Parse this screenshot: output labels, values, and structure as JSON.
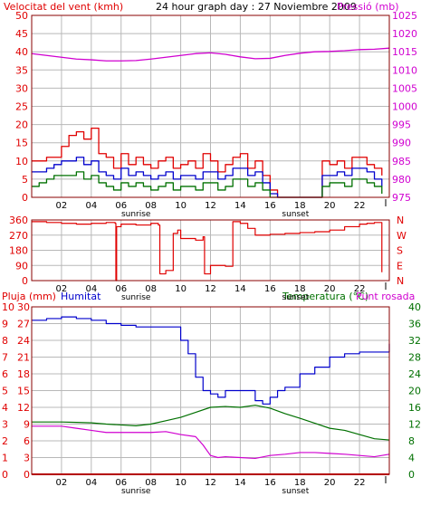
{
  "header": {
    "wind_label": "Velocitat del vent (kmh)",
    "title": "24 hour graph day : 27 Noviembre 2009",
    "pressure_label": "Pressió (mb)"
  },
  "lower_header": {
    "rain_label": "Pluja (mm)",
    "humidity_label": "Humitat",
    "temp_label": "Temperatura (°C)",
    "dew_label": "Punt rosada"
  },
  "colors": {
    "red": "#e00000",
    "magenta": "#d000d0",
    "blue": "#0000cc",
    "green": "#007000",
    "frame": "#880000",
    "grid": "#b8b8b8",
    "green_axis": "#007000",
    "black": "#000000"
  },
  "chart_data": [
    {
      "type": "line",
      "title": "24 hour graph day : 27 Noviembre 2009",
      "x_ticks": [
        "02",
        "04",
        "06",
        "08",
        "10",
        "12",
        "14",
        "16",
        "18",
        "20",
        "22",
        ""
      ],
      "x_annotations": [
        {
          "label": "sunrise",
          "hour": 7
        },
        {
          "label": "sunset",
          "hour": 17.7
        }
      ],
      "y_left": {
        "label": "Velocitat del vent (kmh)",
        "ticks": [
          0,
          5,
          10,
          15,
          20,
          25,
          30,
          35,
          40,
          45,
          50
        ],
        "lim": [
          0,
          50
        ]
      },
      "y_right": {
        "label": "Pressió (mb)",
        "ticks": [
          975,
          980,
          985,
          990,
          995,
          1000,
          1005,
          1010,
          1015,
          1020,
          1025
        ],
        "lim": [
          975,
          1025
        ]
      },
      "series": [
        {
          "name": "Pressió (mb)",
          "axis": "right",
          "color": "#d000d0",
          "x": [
            0,
            1,
            2,
            3,
            4,
            5,
            6,
            7,
            8,
            9,
            10,
            11,
            12,
            13,
            14,
            15,
            16,
            17,
            18,
            19,
            20,
            21,
            22,
            23,
            24
          ],
          "y": [
            1014.5,
            1014.0,
            1013.5,
            1013.0,
            1012.8,
            1012.5,
            1012.5,
            1012.6,
            1013.0,
            1013.5,
            1014.0,
            1014.5,
            1014.7,
            1014.3,
            1013.6,
            1013.1,
            1013.2,
            1014.0,
            1014.6,
            1015.0,
            1015.1,
            1015.3,
            1015.6,
            1015.7,
            1016.0
          ]
        },
        {
          "name": "Ràfega",
          "axis": "left",
          "color": "#e00000",
          "x": [
            0,
            0.5,
            1,
            1.5,
            2,
            2.5,
            3,
            3.5,
            4,
            4.5,
            5,
            5.5,
            6,
            6.5,
            7,
            7.5,
            8,
            8.5,
            9,
            9.5,
            10,
            10.5,
            11,
            11.5,
            12,
            12.5,
            13,
            13.5,
            14,
            14.5,
            15,
            15.5,
            16,
            16.5,
            17,
            17.5,
            18,
            18.5,
            19,
            19.5,
            20,
            20.5,
            21,
            21.5,
            22,
            22.5,
            23,
            23.5
          ],
          "y": [
            10,
            10,
            11,
            11,
            14,
            17,
            18,
            16,
            19,
            12,
            11,
            8,
            12,
            9,
            11,
            9,
            8,
            10,
            11,
            8,
            9,
            10,
            8,
            12,
            10,
            7,
            9,
            11,
            12,
            8,
            10,
            6,
            2,
            0,
            0,
            0,
            0,
            0,
            0,
            10,
            9,
            10,
            8,
            11,
            11,
            9,
            8,
            6
          ]
        },
        {
          "name": "Velocitat",
          "axis": "left",
          "color": "#0000cc",
          "x": [
            0,
            0.5,
            1,
            1.5,
            2,
            2.5,
            3,
            3.5,
            4,
            4.5,
            5,
            5.5,
            6,
            6.5,
            7,
            7.5,
            8,
            8.5,
            9,
            9.5,
            10,
            10.5,
            11,
            11.5,
            12,
            12.5,
            13,
            13.5,
            14,
            14.5,
            15,
            15.5,
            16,
            16.5,
            17,
            17.5,
            18,
            18.5,
            19,
            19.5,
            20,
            20.5,
            21,
            21.5,
            22,
            22.5,
            23,
            23.5
          ],
          "y": [
            7,
            7,
            8,
            9,
            10,
            10,
            11,
            9,
            10,
            7,
            6,
            5,
            8,
            6,
            7,
            6,
            5,
            6,
            7,
            5,
            6,
            6,
            5,
            7,
            7,
            5,
            6,
            8,
            8,
            6,
            7,
            4,
            1,
            0,
            0,
            0,
            0,
            0,
            0,
            6,
            6,
            7,
            6,
            8,
            8,
            7,
            5,
            3
          ]
        },
        {
          "name": "Direcció-bars",
          "axis": "left",
          "color": "#007000",
          "x": [
            0,
            0.5,
            1,
            1.5,
            2,
            2.5,
            3,
            3.5,
            4,
            4.5,
            5,
            5.5,
            6,
            6.5,
            7,
            7.5,
            8,
            8.5,
            9,
            9.5,
            10,
            10.5,
            11,
            11.5,
            12,
            12.5,
            13,
            13.5,
            14,
            14.5,
            15,
            15.5,
            16,
            16.5,
            17,
            17.5,
            18,
            18.5,
            19,
            19.5,
            20,
            20.5,
            21,
            21.5,
            22,
            22.5,
            23,
            23.5
          ],
          "y": [
            3,
            4,
            5,
            6,
            6,
            6,
            7,
            5,
            6,
            4,
            3,
            2,
            4,
            3,
            4,
            3,
            2,
            3,
            4,
            2,
            3,
            3,
            2,
            4,
            4,
            2,
            3,
            5,
            5,
            3,
            4,
            2,
            0,
            0,
            0,
            0,
            0,
            0,
            0,
            3,
            4,
            4,
            3,
            5,
            5,
            4,
            3,
            1
          ]
        }
      ]
    },
    {
      "type": "line",
      "title": "",
      "x_ticks": [
        "02",
        "04",
        "06",
        "08",
        "10",
        "12",
        "14",
        "16",
        "18",
        "20",
        "22",
        ""
      ],
      "x_annotations": [
        {
          "label": "sunrise",
          "hour": 7
        },
        {
          "label": "sunset",
          "hour": 17.7
        }
      ],
      "y_left": {
        "label": "",
        "ticks": [
          0,
          90,
          180,
          270,
          360
        ],
        "lim": [
          0,
          360
        ]
      },
      "y_right": {
        "label": "",
        "ticks": [
          "N",
          "W",
          "S",
          "E",
          "N"
        ]
      },
      "series": [
        {
          "name": "Direcció del vent",
          "color": "#e00000",
          "x": [
            0,
            1,
            2,
            3,
            4,
            5,
            5.6,
            5.65,
            5.7,
            6,
            7,
            8,
            8.5,
            8.6,
            9,
            9.5,
            9.8,
            10,
            11,
            11.5,
            11.6,
            12,
            13,
            13.5,
            14,
            14.5,
            15,
            16,
            17,
            18,
            19,
            20,
            21,
            22,
            22.5,
            23,
            23.5
          ],
          "y": [
            350,
            345,
            340,
            335,
            340,
            345,
            340,
            0,
            320,
            335,
            330,
            340,
            330,
            40,
            60,
            280,
            300,
            250,
            240,
            260,
            40,
            90,
            85,
            350,
            340,
            310,
            270,
            275,
            280,
            285,
            290,
            300,
            320,
            335,
            340,
            345,
            50
          ]
        }
      ]
    },
    {
      "type": "line",
      "title": "",
      "x_ticks": [
        "02",
        "04",
        "06",
        "08",
        "10",
        "12",
        "14",
        "16",
        "18",
        "20",
        "22",
        ""
      ],
      "x_annotations": [
        {
          "label": "sunrise",
          "hour": 7
        },
        {
          "label": "sunset",
          "hour": 17.7
        }
      ],
      "y_left_outer": {
        "label": "Pluja (mm)",
        "ticks": [
          0,
          1,
          2,
          3,
          4,
          5,
          6,
          7,
          8,
          9,
          10
        ],
        "lim": [
          0,
          10
        ]
      },
      "y_left_inner": {
        "label": "Humitat",
        "ticks": [
          0,
          10,
          20,
          30,
          40,
          50,
          60,
          70,
          80,
          90,
          100
        ],
        "lim": [
          0,
          100
        ]
      },
      "y_left_third": {
        "ticks": [
          0,
          3,
          6,
          9,
          12,
          15,
          18,
          21,
          24,
          27,
          30
        ]
      },
      "y_right": {
        "label": "Temperatura (°C)",
        "ticks": [
          0,
          4,
          8,
          12,
          16,
          20,
          24,
          28,
          32,
          36,
          40
        ],
        "lim": [
          0,
          40
        ]
      },
      "series": [
        {
          "name": "Humitat",
          "axis": "humidity",
          "color": "#0000cc",
          "x": [
            0,
            1,
            2,
            3,
            4,
            5,
            6,
            7,
            8,
            9,
            10,
            10.5,
            11,
            11.5,
            12,
            12.5,
            13,
            14,
            15,
            15.5,
            16,
            16.5,
            17,
            18,
            19,
            20,
            21,
            22,
            23,
            24
          ],
          "y": [
            92,
            93,
            94,
            93,
            92,
            90,
            89,
            88,
            88,
            88,
            80,
            72,
            58,
            50,
            48,
            46,
            50,
            50,
            44,
            42,
            46,
            50,
            52,
            60,
            64,
            70,
            72,
            73,
            73,
            78
          ]
        },
        {
          "name": "Temperatura (°C)",
          "axis": "temperature",
          "color": "#007000",
          "x": [
            0,
            1,
            2,
            3,
            4,
            5,
            6,
            7,
            8,
            9,
            10,
            11,
            12,
            13,
            14,
            15,
            16,
            17,
            18,
            19,
            20,
            21,
            22,
            23,
            24
          ],
          "y": [
            12.5,
            12.5,
            12.5,
            12.4,
            12.3,
            12.0,
            11.8,
            11.6,
            12.0,
            12.8,
            13.6,
            14.8,
            16.0,
            16.2,
            16.0,
            16.5,
            15.8,
            14.5,
            13.4,
            12.2,
            11.0,
            10.5,
            9.5,
            8.5,
            8.2
          ]
        },
        {
          "name": "Punt rosada",
          "axis": "temperature",
          "color": "#d000d0",
          "x": [
            0,
            1,
            2,
            3,
            4,
            5,
            6,
            7,
            8,
            9,
            10,
            11,
            11.5,
            12,
            12.5,
            13,
            14,
            15,
            16,
            17,
            18,
            19,
            20,
            21,
            22,
            23,
            24
          ],
          "y": [
            11.5,
            11.5,
            11.5,
            11.0,
            10.5,
            10.0,
            10.0,
            10.0,
            10.0,
            10.2,
            9.5,
            9.0,
            7.0,
            4.5,
            4.0,
            4.2,
            4.0,
            3.8,
            4.5,
            4.8,
            5.2,
            5.2,
            5.0,
            4.8,
            4.5,
            4.2,
            4.8
          ]
        },
        {
          "name": "Pluja (mm)",
          "axis": "rain",
          "color": "#e00000",
          "x": [
            0,
            24
          ],
          "y": [
            0,
            0
          ]
        }
      ]
    }
  ]
}
